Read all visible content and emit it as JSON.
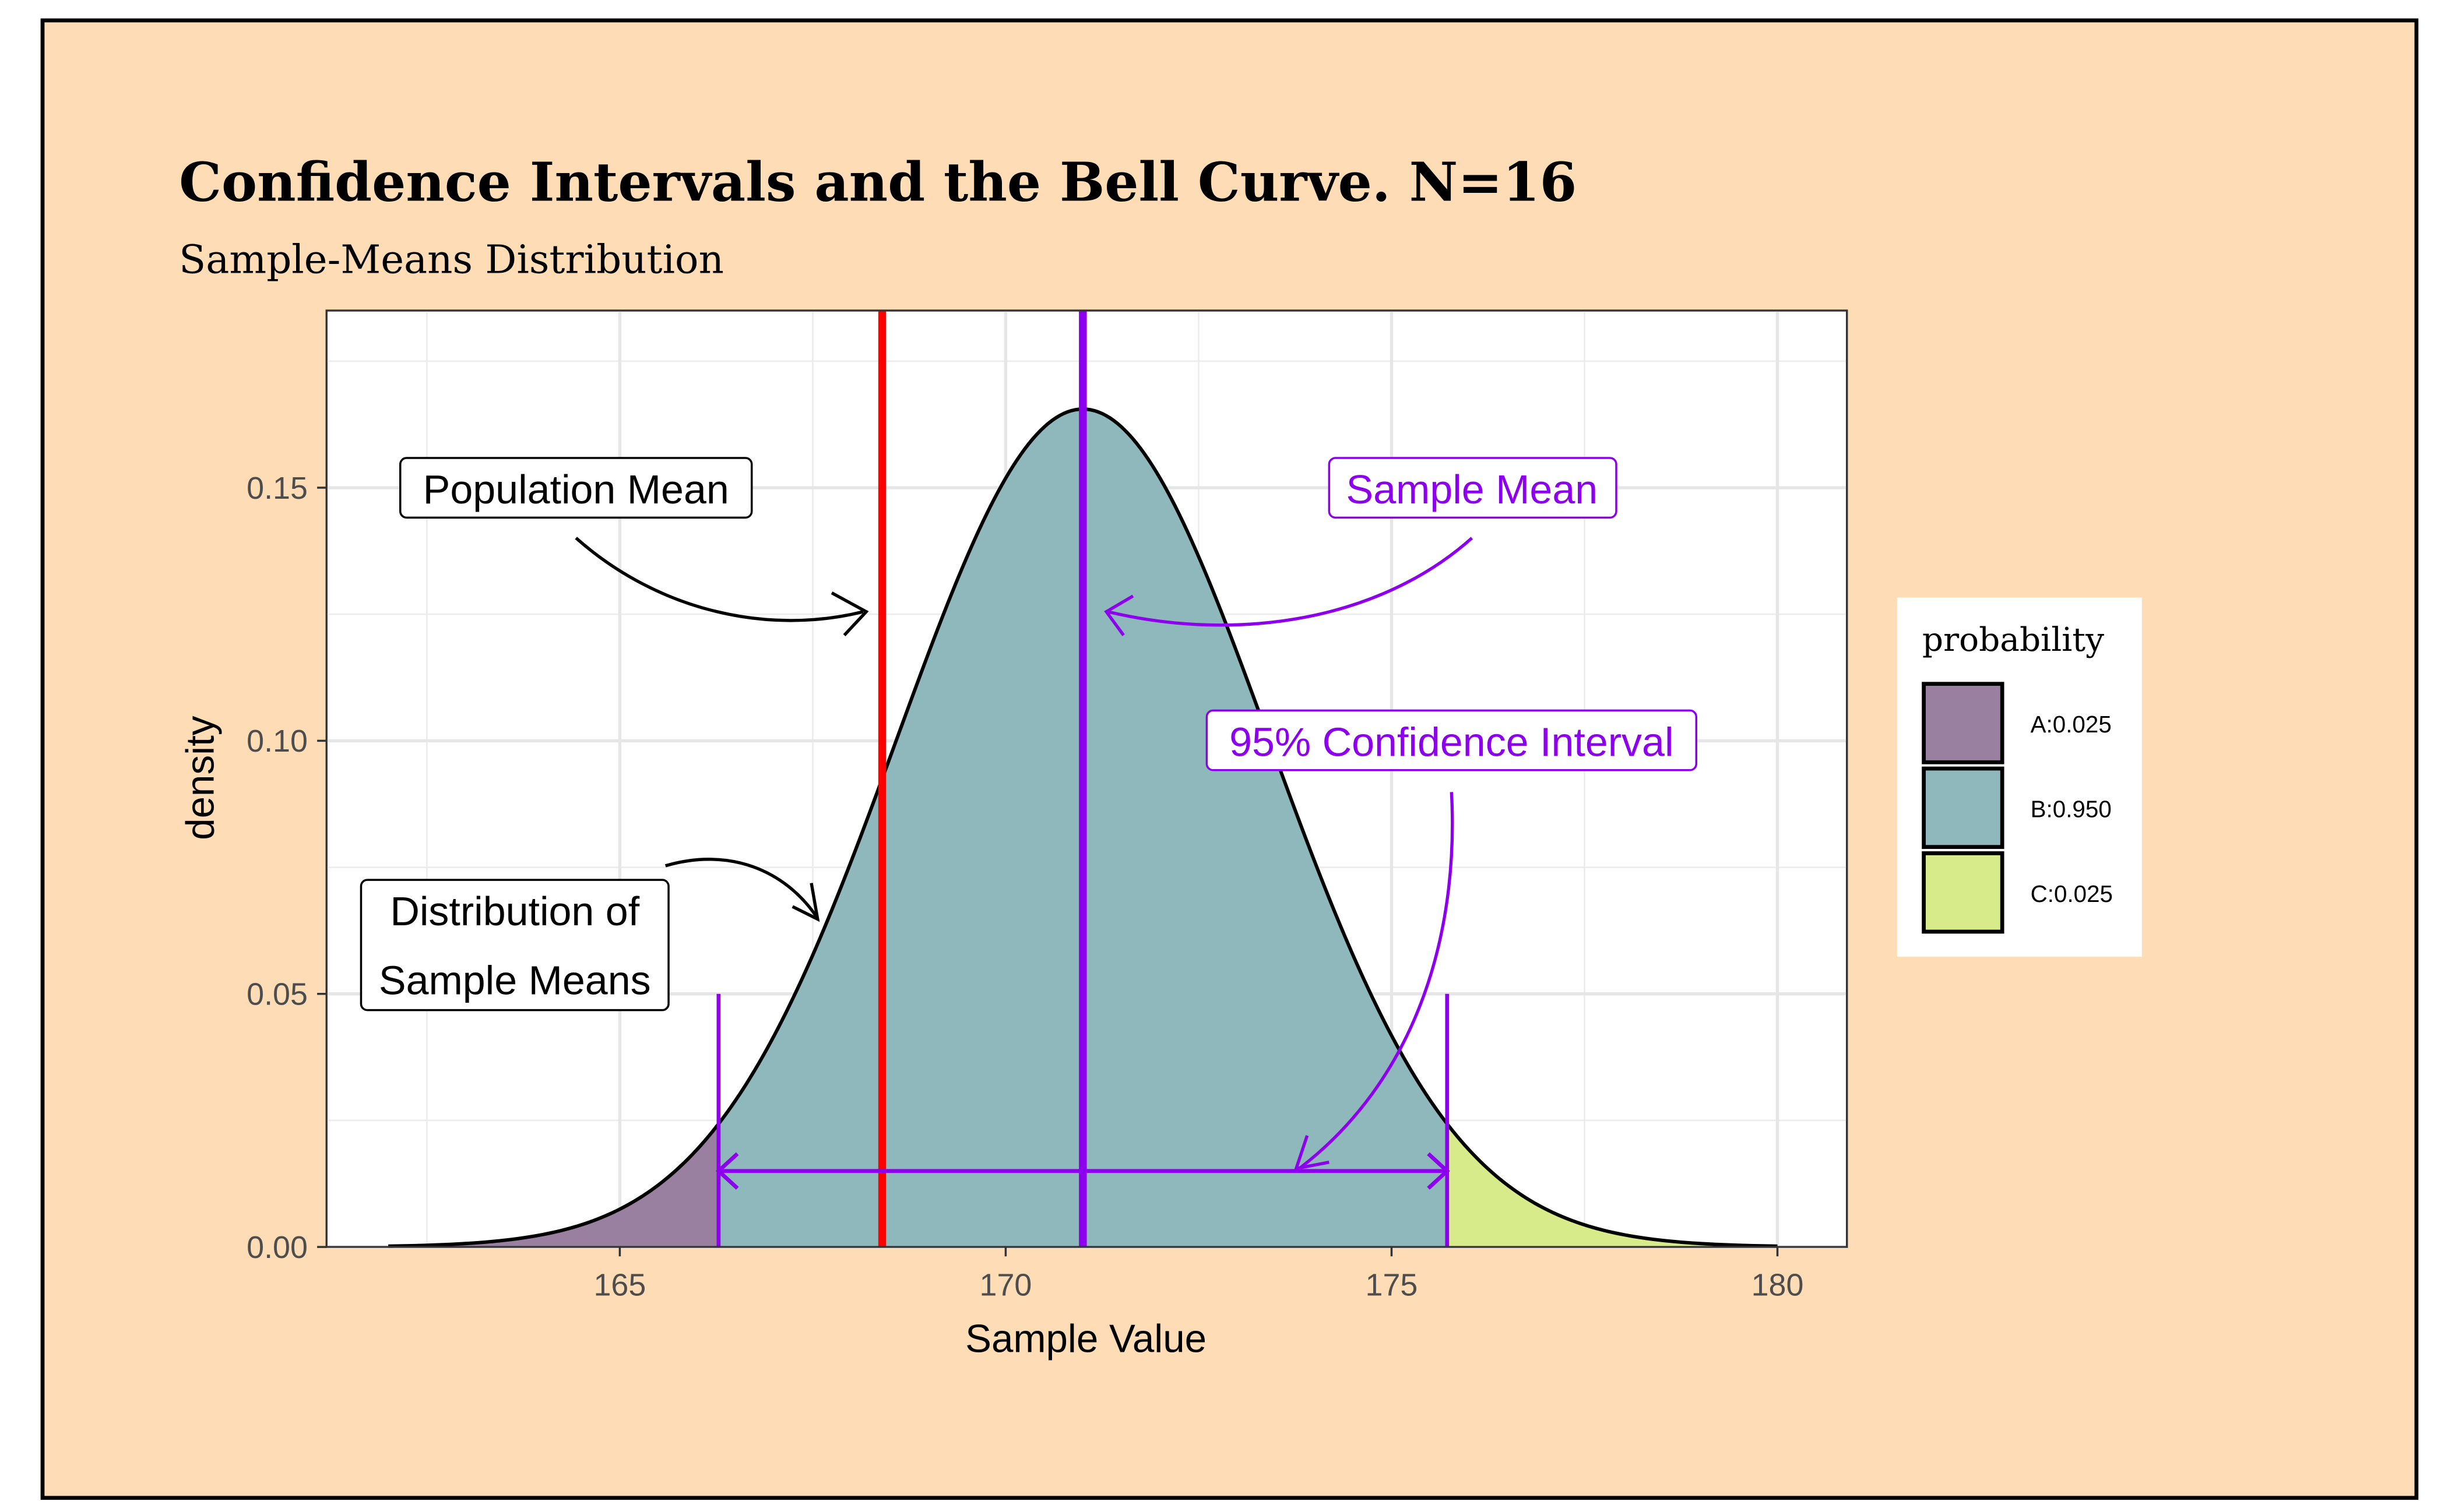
{
  "chart_data": {
    "type": "area",
    "title": "Confidence Intervals and the Bell Curve. N=16",
    "subtitle": "Sample-Means Distribution",
    "xlabel": "Sample Value",
    "ylabel": "density",
    "xlim": [
      161.2,
      180.9
    ],
    "ylim": [
      0,
      0.185
    ],
    "x_ticks": [
      165,
      170,
      175,
      180
    ],
    "x_tick_labels": [
      "165",
      "170",
      "175",
      "180"
    ],
    "y_ticks": [
      0,
      0.05,
      0.1,
      0.15
    ],
    "y_tick_labels": [
      "0.00",
      "0.05",
      "0.10",
      "0.15"
    ],
    "grid": true,
    "distribution": {
      "type": "normal",
      "mean": 171.0,
      "sd": 2.41,
      "x_range": [
        162,
        180
      ]
    },
    "population_mean": 168.4,
    "sample_mean": 171.0,
    "ci": [
      166.28,
      175.72
    ],
    "ci_marker_height": 0.05,
    "ci_arrow_y": 0.015,
    "regions": [
      {
        "key": "A",
        "label": "A:0.025",
        "probability": 0.025,
        "color": "#9a80a0"
      },
      {
        "key": "B",
        "label": "B:0.950",
        "probability": 0.95,
        "color": "#8fb8bc"
      },
      {
        "key": "C",
        "label": "C:0.025",
        "probability": 0.025,
        "color": "#d8eb8b"
      }
    ],
    "legend": {
      "title": "probability",
      "placement": "right"
    },
    "annotations": {
      "population_mean": "Population Mean",
      "sample_mean": "Sample Mean",
      "ci": "95% Confidence Interval",
      "dist_line1": "Distribution of",
      "dist_line2": "Sample Means"
    },
    "colors": {
      "background": "#fddcb6",
      "population_mean_line": "#ff0000",
      "sample_mean_line": "#8c00ee",
      "grid": "#e6e6e6"
    }
  }
}
